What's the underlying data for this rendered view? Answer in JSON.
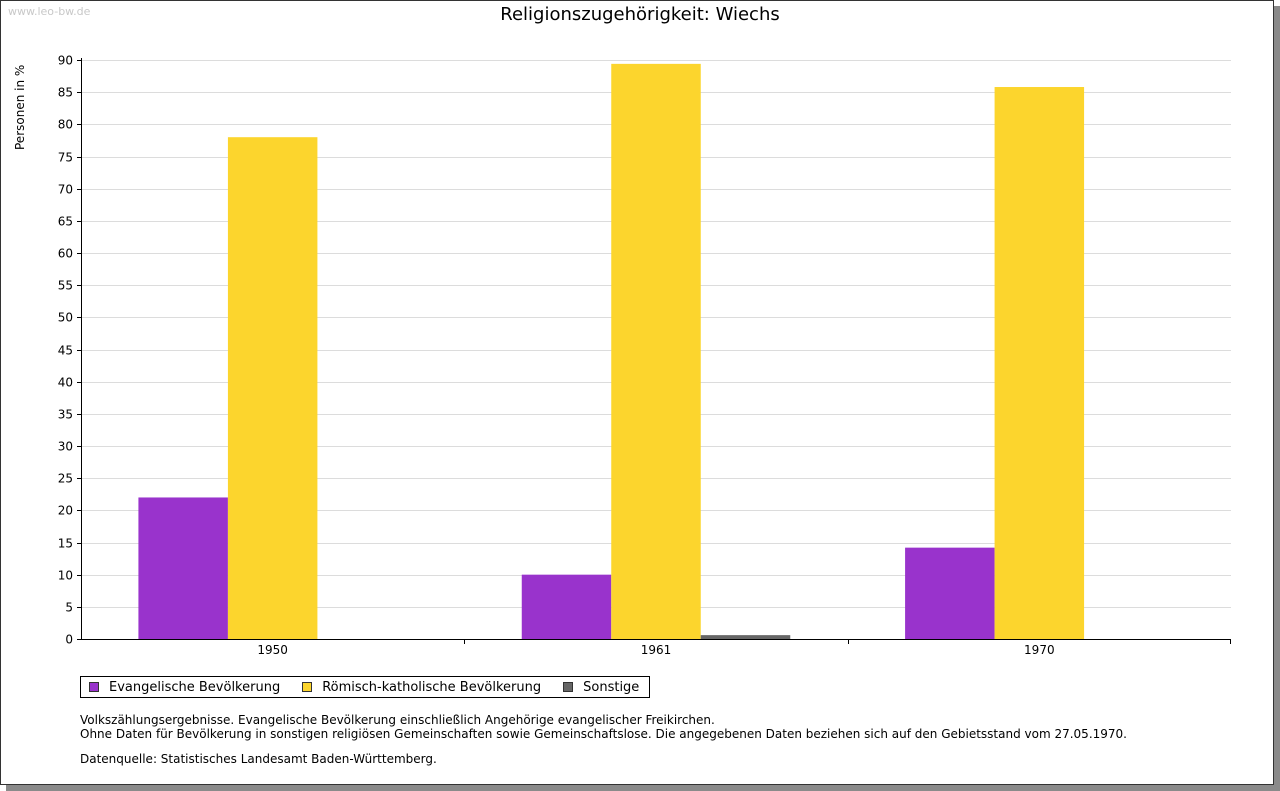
{
  "watermark": "www.leo-bw.de",
  "chart_data": {
    "type": "bar",
    "title": "Religionszugehörigkeit: Wiechs",
    "ylabel": "Personen in %",
    "xlabel": "",
    "ylim": [
      0,
      90
    ],
    "yticks": [
      0,
      5,
      10,
      15,
      20,
      25,
      30,
      35,
      40,
      45,
      50,
      55,
      60,
      65,
      70,
      75,
      80,
      85,
      90
    ],
    "grid": true,
    "categories": [
      "1950",
      "1961",
      "1970"
    ],
    "series": [
      {
        "name": "Evangelische Bevölkerung",
        "color": "#9933cc",
        "values": [
          22.0,
          10.0,
          14.2
        ]
      },
      {
        "name": "Römisch-katholische Bevölkerung",
        "color": "#fcd52d",
        "values": [
          78.0,
          89.4,
          85.8
        ]
      },
      {
        "name": "Sonstige",
        "color": "#666666",
        "values": [
          0,
          0.6,
          0
        ]
      }
    ],
    "legend_position": "bottom-left"
  },
  "notes": {
    "line1": "Volkszählungsergebnisse. Evangelische Bevölkerung einschließlich Angehörige evangelischer Freikirchen.",
    "line2": "Ohne Daten für Bevölkerung in sonstigen religiösen Gemeinschaften sowie Gemeinschaftslose. Die angegebenen Daten beziehen sich auf den Gebietsstand vom 27.05.1970.",
    "source": "Datenquelle: Statistisches Landesamt Baden-Württemberg."
  }
}
